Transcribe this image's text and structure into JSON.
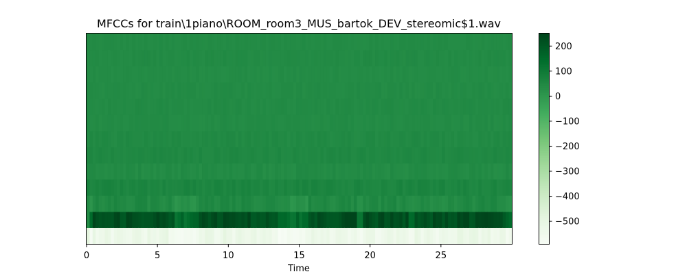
{
  "chart_data": {
    "type": "heatmap",
    "title": "MFCCs for train\\1piano\\ROOM_room3_MUS_bartok_DEV_stereomic$1.wav",
    "xlabel": "Time",
    "ylabel": "",
    "xlim": [
      0,
      30
    ],
    "xticks": [
      0,
      5,
      10,
      15,
      20,
      25
    ],
    "n_coefficients": 13,
    "n_frames": 140,
    "colormap": "Greens",
    "colorbar": {
      "vmin": -590,
      "vmax": 250,
      "ticks": [
        200,
        100,
        0,
        -100,
        -200,
        -300,
        -400,
        -500
      ],
      "tick_labels": [
        "200",
        "100",
        "0",
        "−100",
        "−200",
        "−300",
        "−400",
        "−500"
      ]
    },
    "coefficient_base_values": [
      -555,
      205,
      35,
      60,
      40,
      50,
      45,
      40,
      42,
      40,
      38,
      42,
      40
    ],
    "coefficient_variation": [
      25,
      30,
      20,
      12,
      10,
      8,
      8,
      6,
      6,
      6,
      5,
      6,
      5
    ],
    "active_segments": [
      [
        0.5,
        6.2
      ],
      [
        7.9,
        13.6
      ],
      [
        15.6,
        19.0
      ],
      [
        19.4,
        22.8
      ],
      [
        23.2,
        29.6
      ]
    ],
    "grid": false
  }
}
